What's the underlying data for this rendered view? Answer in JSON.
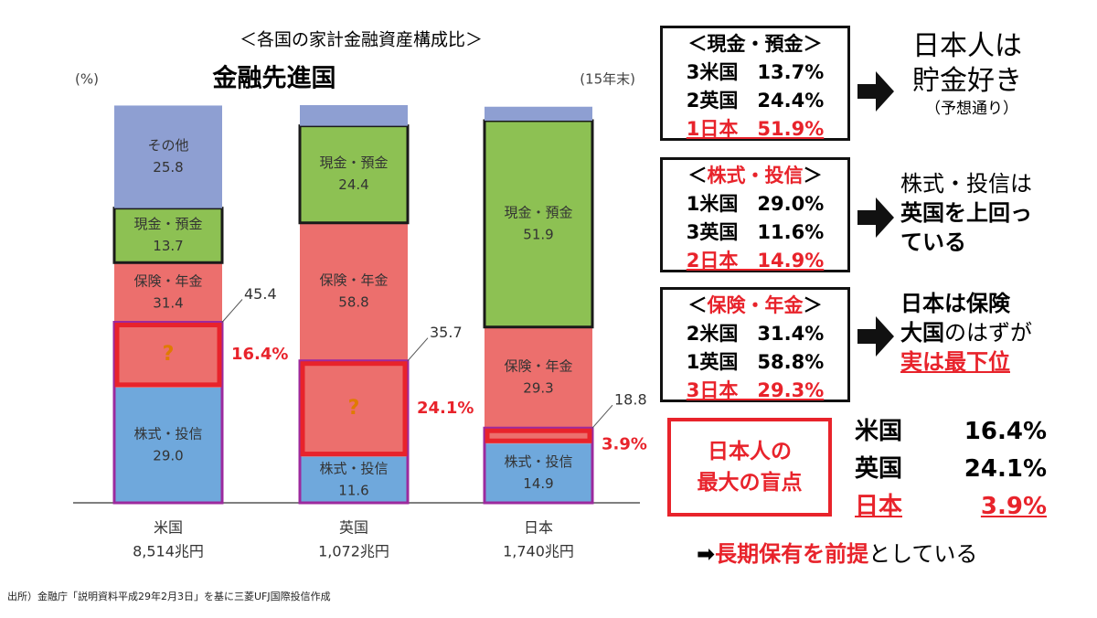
{
  "chart_data": {
    "type": "stacked-bar",
    "title": "＜各国の家計金融資産構成比＞",
    "subtitle": "金融先進国",
    "unit_label": "(%)",
    "period_label": "(15年末)",
    "categories": [
      "米国",
      "英国",
      "日本"
    ],
    "sublabels": [
      "8,514兆円",
      "1,072兆円",
      "1,740兆円"
    ],
    "ylim": [
      0,
      100
    ],
    "series": [
      {
        "name": "株式・投信",
        "color": "#6fa8dc",
        "values": [
          29.0,
          11.6,
          14.9
        ],
        "value_labels": [
          "29.0",
          "11.6",
          "14.9"
        ]
      },
      {
        "name": "保険・年金",
        "color": "#ec6f6d",
        "values": [
          31.4,
          58.8,
          29.3
        ],
        "value_labels": [
          "31.4",
          "58.8",
          "29.3"
        ]
      },
      {
        "name": "現金・預金",
        "color": "#8dc153",
        "outline": "#1a1a1a",
        "values": [
          13.7,
          24.4,
          51.9
        ],
        "value_labels": [
          "13.7",
          "24.4",
          "51.9"
        ]
      },
      {
        "name": "その他",
        "color": "#8e9fd2",
        "values": [
          25.8,
          5.2,
          3.5
        ],
        "value_labels": [
          "25.8",
          null,
          null
        ]
      }
    ],
    "highlight": {
      "labels": [
        "?",
        "?",
        null
      ],
      "values": [
        16.4,
        24.1,
        3.9
      ],
      "value_labels": [
        "16.4%",
        "24.1%",
        "3.9%"
      ],
      "totals": [
        45.4,
        35.7,
        18.8
      ],
      "color": "#e8232b",
      "outline": "#9c2a9e"
    }
  },
  "panels": [
    {
      "open": "＜",
      "name": "現金・預金",
      "close": "＞",
      "rows": [
        "3米国　13.7%",
        "2英国　24.4%",
        "1日本　51.9%"
      ]
    },
    {
      "open": "＜",
      "name": "株式・投信",
      "close": "＞",
      "rows": [
        "1米国　29.0%",
        "3英国　11.6%",
        "2日本　14.9%"
      ]
    },
    {
      "open": "＜",
      "name": "保険・年金",
      "close": "＞",
      "rows": [
        "2米国　31.4%",
        "1英国　58.8%",
        "3日本　29.3%"
      ]
    }
  ],
  "comments": [
    {
      "lines": [
        "日本人は",
        "貯金好き"
      ],
      "note": "（予想通り）"
    },
    {
      "lines": [
        "株式・投信は",
        "英国を上回っ",
        "ている"
      ]
    },
    {
      "a": "日本は保険",
      "b1": "大国",
      "b2": "のはずが",
      "c": "実は最下位"
    }
  ],
  "blind_spot": {
    "lines": [
      "日本人の",
      "最大の盲点"
    ],
    "rows": [
      [
        "米国",
        "16.4%"
      ],
      [
        "英国",
        "24.1%"
      ],
      [
        "日本",
        "3.9%"
      ]
    ]
  },
  "conclusion": {
    "arrow": "➡",
    "em": "長期保有を前提",
    "rest": "としている"
  },
  "source": "出所）金融庁「説明資料平成29年2月3日」を基に三菱UFJ国際投信作成"
}
